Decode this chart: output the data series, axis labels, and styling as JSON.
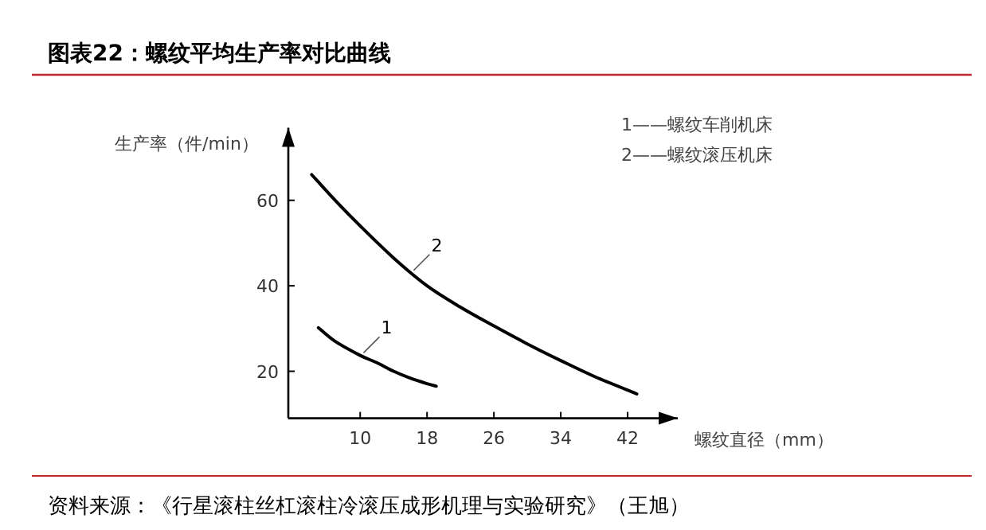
{
  "chart_data": {
    "type": "line",
    "title": "图表22：螺纹平均生产率对比曲线",
    "xlabel": "螺纹直径（mm）",
    "ylabel": "生产率（件/min）",
    "series": [
      {
        "name": "1——螺纹车削机床",
        "color": "#000000",
        "x": [
          5.0,
          7,
          10,
          12,
          14,
          16,
          18,
          19.1
        ],
        "values": [
          30.2,
          27,
          23.7,
          22,
          20,
          18.4,
          17.1,
          16.5
        ]
      },
      {
        "name": "2——螺纹滚压机床",
        "color": "#000000",
        "x": [
          4.2,
          7,
          10,
          14,
          18,
          22,
          26,
          30,
          34,
          38,
          43.1
        ],
        "values": [
          66,
          60,
          54,
          46.5,
          40,
          35,
          30.6,
          26.4,
          22.5,
          18.8,
          14.7
        ]
      }
    ],
    "annotations": [
      {
        "text": "1",
        "x": 10.4,
        "y": 24.3
      },
      {
        "text": "2",
        "x": 16.4,
        "y": 43.6
      },
      "资料来源：《行星滚柱丝杠滚柱冷滚压成形机理与实验研究》（王旭）"
    ],
    "xlim": [
      1.4,
      48
    ],
    "ylim": [
      9,
      77
    ],
    "xticks": [
      10,
      18,
      26,
      34,
      42
    ],
    "yticks": [
      20,
      40,
      60
    ],
    "legend": "top right"
  }
}
